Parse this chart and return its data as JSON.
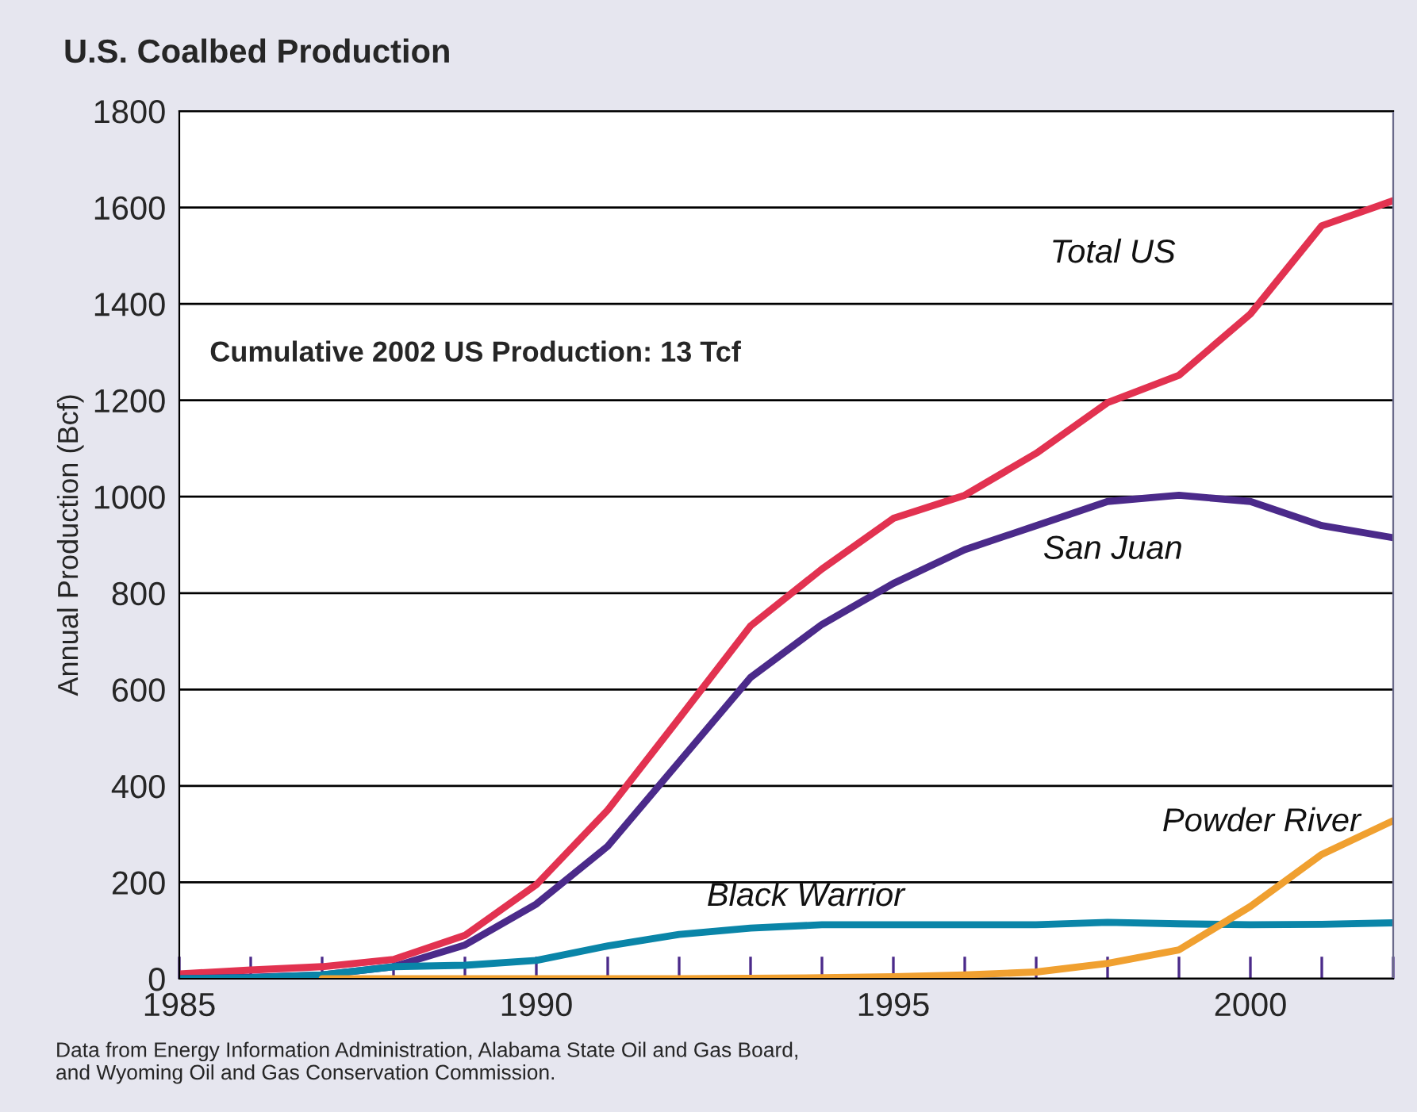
{
  "chart_data": {
    "type": "line",
    "title": "U.S. Coalbed Production",
    "ylabel": "Annual Production (Bcf)",
    "x": [
      1985,
      1986,
      1987,
      1988,
      1989,
      1990,
      1991,
      1992,
      1993,
      1994,
      1995,
      1996,
      1997,
      1998,
      1999,
      2000,
      2001,
      2002
    ],
    "series": [
      {
        "name": "Total US",
        "color": "#e23250",
        "values": [
          10,
          18,
          25,
          40,
          90,
          195,
          350,
          540,
          732,
          850,
          955,
          1003,
          1090,
          1195,
          1252,
          1379,
          1562,
          1614
        ]
      },
      {
        "name": "San Juan",
        "color": "#4b2a8a",
        "values": [
          0,
          3,
          8,
          25,
          70,
          155,
          275,
          450,
          625,
          735,
          820,
          890,
          940,
          990,
          1003,
          990,
          940,
          915
        ]
      },
      {
        "name": "Black Warrior",
        "color": "#0a85a8",
        "values": [
          0,
          2,
          8,
          25,
          28,
          38,
          68,
          92,
          105,
          112,
          112,
          112,
          112,
          117,
          114,
          112,
          113,
          116
        ]
      },
      {
        "name": "Powder River",
        "color": "#f0a030",
        "values": [
          null,
          null,
          0,
          0,
          0,
          0,
          0,
          0,
          1,
          2,
          4,
          8,
          14,
          32,
          60,
          150,
          258,
          328
        ]
      }
    ],
    "xlim": [
      1985,
      2002
    ],
    "ylim": [
      0,
      1800
    ],
    "xticks": [
      1985,
      {
        "value": 1986,
        "label": null
      },
      {
        "value": 1987,
        "label": null
      },
      {
        "value": 1988,
        "label": null
      },
      {
        "value": 1989,
        "label": null
      },
      1990,
      {
        "value": 1991,
        "label": null
      },
      {
        "value": 1992,
        "label": null
      },
      {
        "value": 1993,
        "label": null
      },
      {
        "value": 1994,
        "label": null
      },
      1995,
      {
        "value": 1996,
        "label": null
      },
      {
        "value": 1997,
        "label": null
      },
      {
        "value": 1998,
        "label": null
      },
      {
        "value": 1999,
        "label": null
      },
      2000,
      {
        "value": 2001,
        "label": null
      },
      {
        "value": 2002,
        "label": null
      }
    ],
    "yticks": [
      0,
      200,
      400,
      600,
      800,
      1000,
      1200,
      1400,
      1600,
      1800
    ],
    "grid": "y",
    "legend": false,
    "annotations": [
      "Cumulative 2002 US Production: 13 Tcf",
      "Data from Energy Information Administration, Alabama State Oil and Gas Board,\nand Wyoming Oil and Gas Conservation Commission."
    ]
  }
}
